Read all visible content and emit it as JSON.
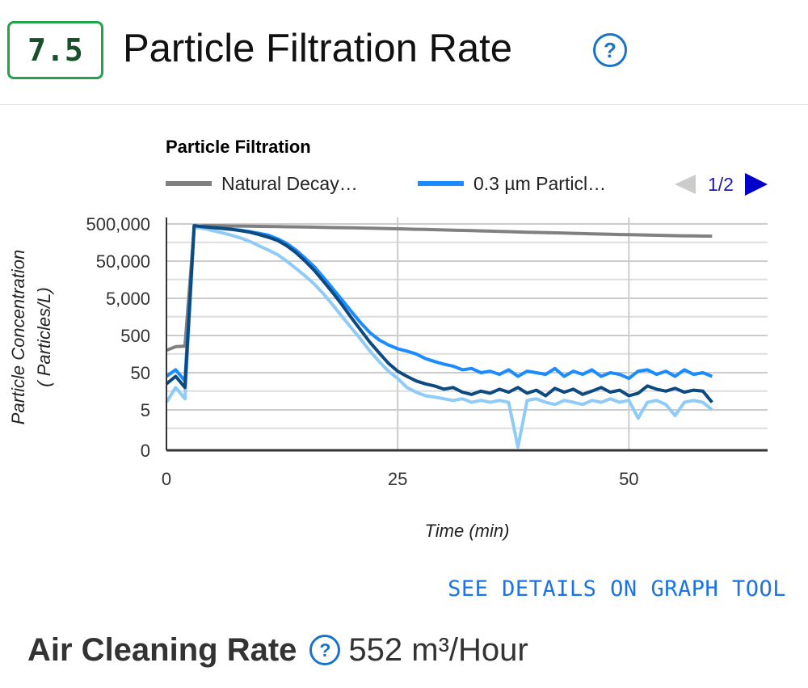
{
  "header": {
    "score": "7.5",
    "title": "Particle Filtration Rate",
    "help_icon": "question-circle-icon",
    "score_color": "#22a24a"
  },
  "link": {
    "see_details": "SEE DETAILS ON GRAPH TOOL"
  },
  "metric": {
    "label": "Air Cleaning Rate",
    "value": "552 m³/Hour"
  },
  "chart_data": {
    "type": "line",
    "title": "Particle Filtration",
    "xlabel": "Time (min)",
    "ylabel": "Particle Concentration",
    "ylabel2": "( Particles/L)",
    "xlim": [
      0,
      65
    ],
    "xticks": [
      0,
      25,
      50
    ],
    "yscale": "log",
    "yticks": [
      500000,
      50000,
      5000,
      500,
      50,
      5,
      0.5
    ],
    "ytick_labels": [
      "500,000",
      "50,000",
      "5,000",
      "500",
      "50",
      "5",
      "0"
    ],
    "grid": true,
    "legend_position": "top",
    "legend_page": "1/2",
    "x": [
      0,
      1,
      2,
      3,
      4,
      5,
      6,
      7,
      8,
      9,
      10,
      11,
      12,
      13,
      14,
      15,
      16,
      17,
      18,
      19,
      20,
      21,
      22,
      23,
      24,
      25,
      26,
      27,
      28,
      29,
      30,
      31,
      32,
      33,
      34,
      35,
      36,
      37,
      38,
      39,
      40,
      41,
      42,
      43,
      44,
      45,
      46,
      47,
      48,
      49,
      50,
      51,
      52,
      53,
      54,
      55,
      56,
      57,
      58,
      59
    ],
    "series": [
      {
        "name": "Natural Decay…",
        "color": "#808080",
        "values": [
          200,
          250,
          260,
          400000,
          450000,
          450000,
          445000,
          440000,
          440000,
          435000,
          430000,
          428000,
          425000,
          420000,
          418000,
          415000,
          410000,
          405000,
          400000,
          398000,
          395000,
          390000,
          385000,
          380000,
          375000,
          370000,
          365000,
          360000,
          355000,
          350000,
          345000,
          340000,
          335000,
          330000,
          325000,
          320000,
          315000,
          310000,
          305000,
          300000,
          296000,
          292000,
          288000,
          284000,
          280000,
          276000,
          272000,
          268000,
          264000,
          260000,
          257000,
          254000,
          251000,
          248000,
          245000,
          242000,
          240000,
          238000,
          236000,
          235000
        ]
      },
      {
        "name": "0.3 µm Particl…",
        "color": "#1a8cff",
        "values": [
          40,
          60,
          30,
          450000,
          420000,
          400000,
          380000,
          360000,
          340000,
          310000,
          280000,
          250000,
          200000,
          150000,
          100000,
          60000,
          35000,
          18000,
          9000,
          4500,
          2200,
          1100,
          600,
          380,
          280,
          220,
          190,
          160,
          120,
          100,
          85,
          75,
          60,
          65,
          50,
          55,
          45,
          60,
          40,
          55,
          50,
          45,
          65,
          40,
          55,
          45,
          60,
          40,
          50,
          45,
          35,
          55,
          60,
          45,
          55,
          40,
          60,
          45,
          50,
          40
        ]
      },
      {
        "color": "#0d4a80",
        "values": [
          25,
          40,
          20,
          450000,
          420000,
          400000,
          380000,
          360000,
          330000,
          300000,
          260000,
          220000,
          180000,
          130000,
          85000,
          50000,
          28000,
          14000,
          7000,
          3300,
          1500,
          700,
          330,
          170,
          90,
          55,
          40,
          30,
          25,
          22,
          18,
          20,
          15,
          13,
          16,
          14,
          18,
          15,
          20,
          14,
          17,
          12,
          19,
          15,
          18,
          13,
          16,
          20,
          15,
          17,
          12,
          14,
          22,
          18,
          16,
          19,
          15,
          17,
          16,
          8
        ]
      },
      {
        "color": "#8ecbf7",
        "values": [
          8,
          20,
          10,
          400000,
          380000,
          330000,
          290000,
          250000,
          210000,
          170000,
          130000,
          100000,
          75000,
          50000,
          32000,
          20000,
          12000,
          6500,
          3300,
          1600,
          800,
          400,
          190,
          100,
          55,
          35,
          20,
          15,
          12,
          11,
          10,
          9,
          10,
          8,
          9,
          8,
          9,
          8,
          0.5,
          9,
          10,
          8,
          7,
          9,
          8,
          7,
          9,
          8,
          10,
          8,
          9,
          3,
          8,
          9,
          7,
          3.5,
          8,
          9,
          8,
          5
        ]
      }
    ]
  }
}
